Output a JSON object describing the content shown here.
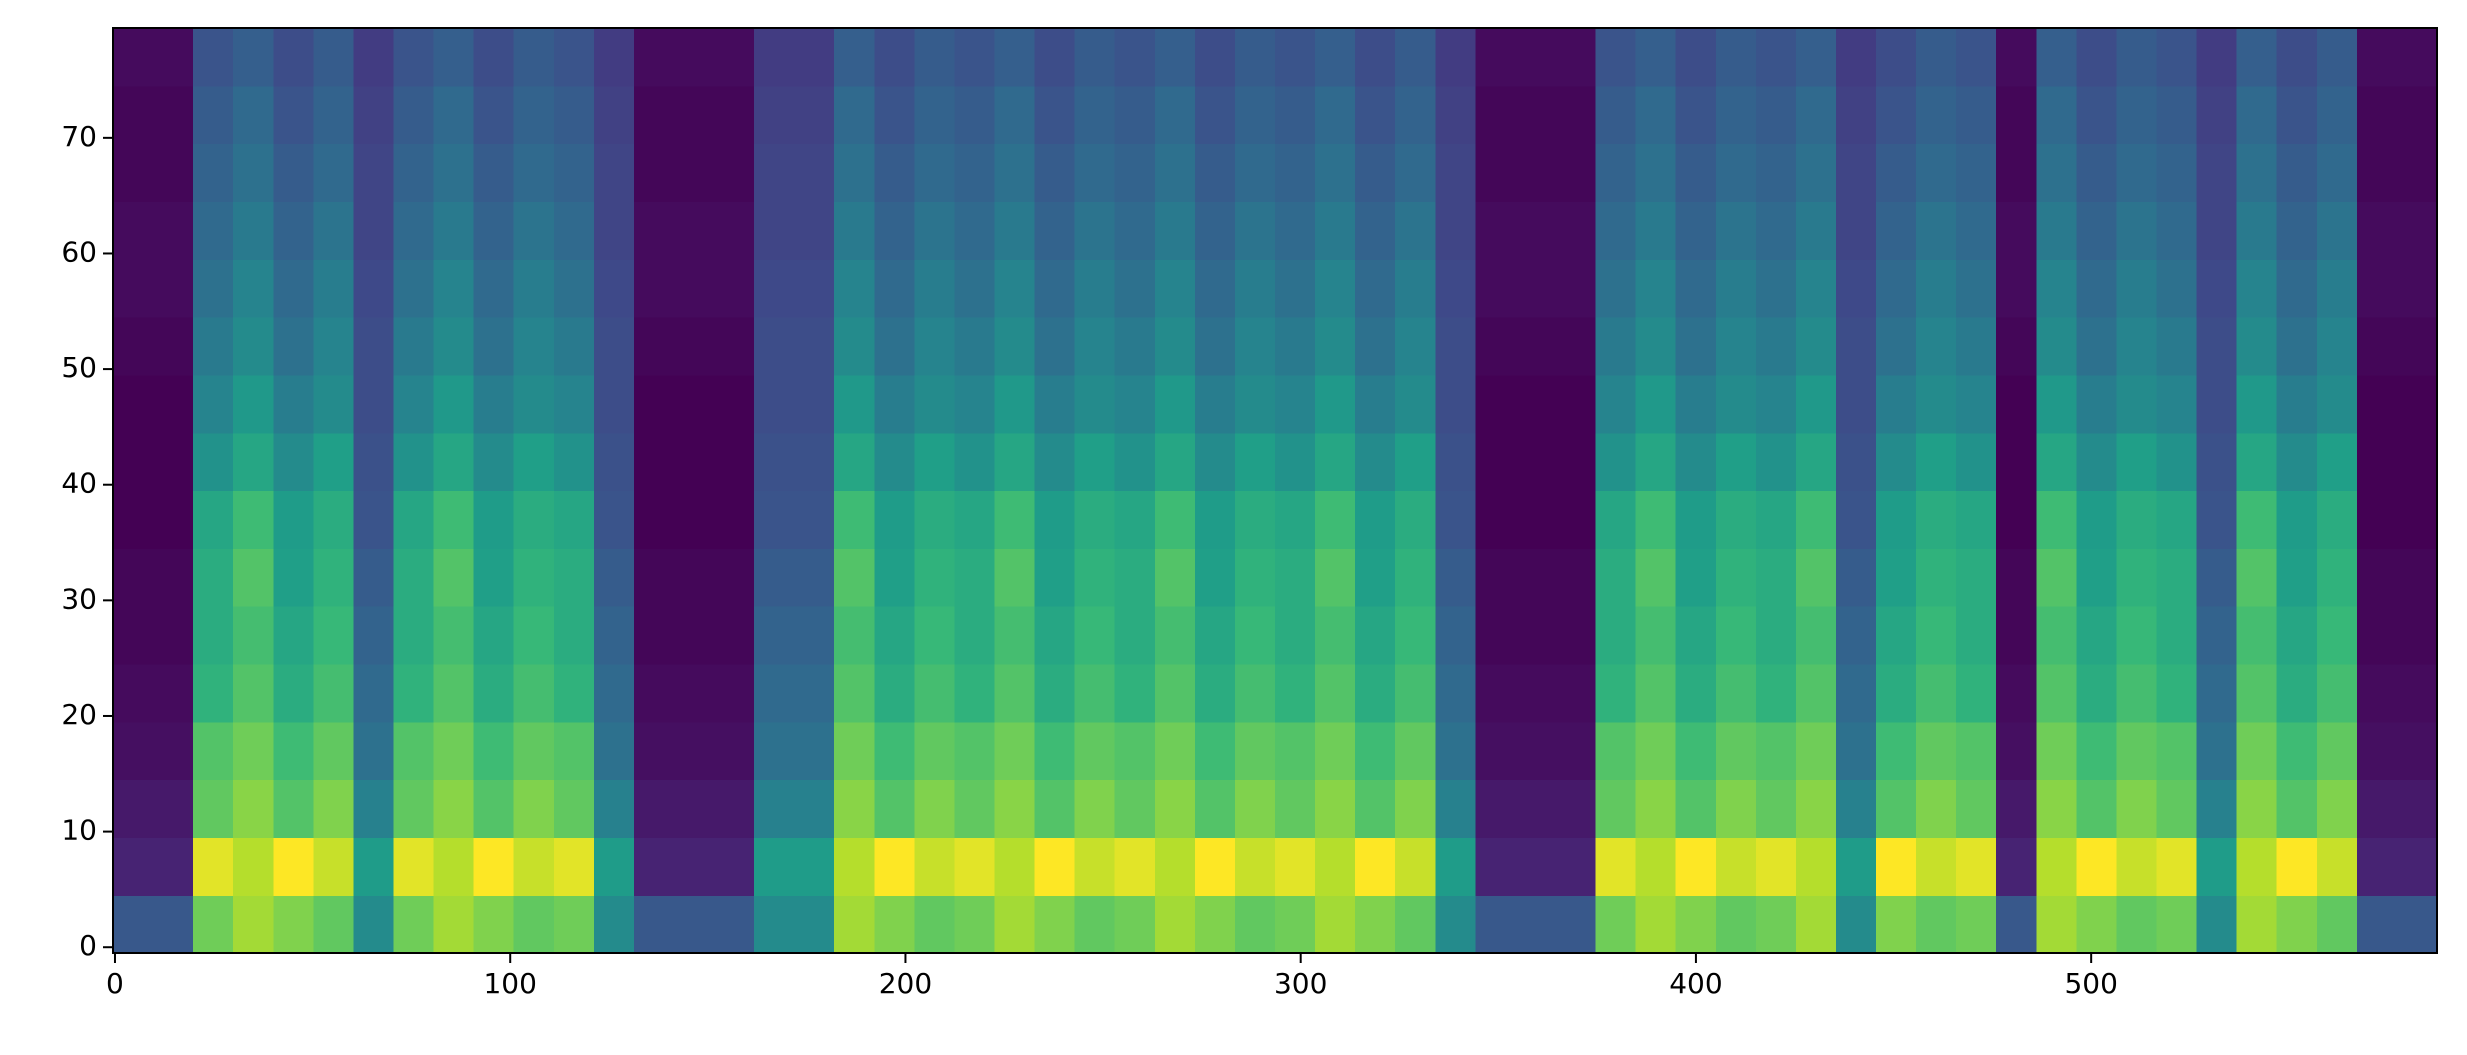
{
  "chart_data": {
    "type": "heatmap",
    "colormap": "viridis",
    "xlim": [
      -0.5,
      587.5
    ],
    "ylim": [
      -0.5,
      79.5
    ],
    "xticks": [
      0,
      100,
      200,
      300,
      400,
      500
    ],
    "yticks": [
      0,
      10,
      20,
      30,
      40,
      50,
      60,
      70
    ],
    "z": [
      [
        0.35,
        0.35,
        0.72,
        0.78,
        0.74,
        0.7,
        0.5,
        0.72,
        0.78,
        0.74,
        0.7,
        0.72,
        0.5,
        0.35,
        0.35,
        0.35,
        0.5,
        0.5,
        0.78,
        0.74,
        0.7,
        0.72,
        0.78,
        0.74,
        0.7,
        0.72,
        0.78,
        0.74,
        0.7,
        0.72,
        0.78,
        0.74,
        0.7,
        0.5,
        0.35,
        0.35,
        0.35,
        0.72,
        0.78,
        0.74,
        0.7,
        0.72,
        0.78,
        0.5,
        0.74,
        0.7,
        0.72,
        0.35,
        0.78,
        0.74,
        0.7,
        0.72,
        0.5,
        0.78,
        0.74,
        0.7,
        0.35,
        0.35
      ],
      [
        0.22,
        0.22,
        0.85,
        0.8,
        0.88,
        0.82,
        0.55,
        0.85,
        0.8,
        0.88,
        0.82,
        0.85,
        0.55,
        0.22,
        0.22,
        0.22,
        0.55,
        0.55,
        0.8,
        0.88,
        0.82,
        0.85,
        0.8,
        0.88,
        0.82,
        0.85,
        0.8,
        0.88,
        0.82,
        0.85,
        0.8,
        0.88,
        0.82,
        0.55,
        0.22,
        0.22,
        0.22,
        0.85,
        0.8,
        0.88,
        0.82,
        0.85,
        0.8,
        0.55,
        0.88,
        0.82,
        0.85,
        0.22,
        0.8,
        0.88,
        0.82,
        0.85,
        0.55,
        0.8,
        0.88,
        0.82,
        0.22,
        0.22
      ],
      [
        0.2,
        0.2,
        0.7,
        0.75,
        0.68,
        0.74,
        0.47,
        0.7,
        0.75,
        0.68,
        0.74,
        0.7,
        0.47,
        0.2,
        0.2,
        0.2,
        0.47,
        0.47,
        0.75,
        0.68,
        0.74,
        0.7,
        0.75,
        0.68,
        0.74,
        0.7,
        0.75,
        0.68,
        0.74,
        0.7,
        0.75,
        0.68,
        0.74,
        0.47,
        0.2,
        0.2,
        0.2,
        0.7,
        0.75,
        0.68,
        0.74,
        0.7,
        0.75,
        0.47,
        0.68,
        0.74,
        0.7,
        0.2,
        0.75,
        0.68,
        0.74,
        0.7,
        0.47,
        0.75,
        0.68,
        0.74,
        0.2,
        0.2
      ],
      [
        0.18,
        0.18,
        0.68,
        0.72,
        0.65,
        0.7,
        0.42,
        0.68,
        0.72,
        0.65,
        0.7,
        0.68,
        0.42,
        0.18,
        0.18,
        0.18,
        0.42,
        0.42,
        0.72,
        0.65,
        0.7,
        0.68,
        0.72,
        0.65,
        0.7,
        0.68,
        0.72,
        0.65,
        0.7,
        0.68,
        0.72,
        0.65,
        0.7,
        0.42,
        0.18,
        0.18,
        0.18,
        0.68,
        0.72,
        0.65,
        0.7,
        0.68,
        0.72,
        0.42,
        0.65,
        0.7,
        0.68,
        0.18,
        0.72,
        0.65,
        0.7,
        0.68,
        0.42,
        0.72,
        0.65,
        0.7,
        0.18,
        0.18
      ],
      [
        0.17,
        0.17,
        0.62,
        0.68,
        0.6,
        0.66,
        0.4,
        0.62,
        0.68,
        0.6,
        0.66,
        0.62,
        0.4,
        0.17,
        0.17,
        0.17,
        0.4,
        0.4,
        0.68,
        0.6,
        0.66,
        0.62,
        0.68,
        0.6,
        0.66,
        0.62,
        0.68,
        0.6,
        0.66,
        0.62,
        0.68,
        0.6,
        0.66,
        0.4,
        0.17,
        0.17,
        0.17,
        0.62,
        0.68,
        0.6,
        0.66,
        0.62,
        0.68,
        0.4,
        0.6,
        0.66,
        0.62,
        0.17,
        0.68,
        0.6,
        0.66,
        0.62,
        0.4,
        0.68,
        0.6,
        0.66,
        0.17,
        0.17
      ],
      [
        0.16,
        0.16,
        0.6,
        0.66,
        0.58,
        0.64,
        0.38,
        0.6,
        0.66,
        0.58,
        0.64,
        0.6,
        0.38,
        0.16,
        0.16,
        0.16,
        0.38,
        0.38,
        0.66,
        0.58,
        0.64,
        0.6,
        0.66,
        0.58,
        0.64,
        0.6,
        0.66,
        0.58,
        0.64,
        0.6,
        0.66,
        0.58,
        0.64,
        0.38,
        0.16,
        0.16,
        0.16,
        0.6,
        0.66,
        0.58,
        0.64,
        0.6,
        0.66,
        0.38,
        0.58,
        0.64,
        0.6,
        0.16,
        0.66,
        0.58,
        0.64,
        0.6,
        0.38,
        0.66,
        0.58,
        0.64,
        0.16,
        0.16
      ],
      [
        0.16,
        0.16,
        0.6,
        0.68,
        0.56,
        0.62,
        0.36,
        0.6,
        0.68,
        0.56,
        0.62,
        0.6,
        0.36,
        0.16,
        0.16,
        0.16,
        0.36,
        0.36,
        0.68,
        0.56,
        0.62,
        0.6,
        0.68,
        0.56,
        0.62,
        0.6,
        0.68,
        0.56,
        0.62,
        0.6,
        0.68,
        0.56,
        0.62,
        0.36,
        0.16,
        0.16,
        0.16,
        0.6,
        0.68,
        0.56,
        0.62,
        0.6,
        0.68,
        0.36,
        0.56,
        0.62,
        0.6,
        0.16,
        0.68,
        0.56,
        0.62,
        0.6,
        0.36,
        0.68,
        0.56,
        0.62,
        0.16,
        0.16
      ],
      [
        0.15,
        0.15,
        0.58,
        0.65,
        0.55,
        0.6,
        0.34,
        0.58,
        0.65,
        0.55,
        0.6,
        0.58,
        0.34,
        0.15,
        0.15,
        0.15,
        0.34,
        0.34,
        0.65,
        0.55,
        0.6,
        0.58,
        0.65,
        0.55,
        0.6,
        0.58,
        0.65,
        0.55,
        0.6,
        0.58,
        0.65,
        0.55,
        0.6,
        0.34,
        0.15,
        0.15,
        0.15,
        0.58,
        0.65,
        0.55,
        0.6,
        0.58,
        0.65,
        0.34,
        0.55,
        0.6,
        0.58,
        0.15,
        0.65,
        0.55,
        0.6,
        0.58,
        0.34,
        0.65,
        0.55,
        0.6,
        0.15,
        0.15
      ],
      [
        0.15,
        0.15,
        0.52,
        0.58,
        0.5,
        0.56,
        0.33,
        0.52,
        0.58,
        0.5,
        0.56,
        0.52,
        0.33,
        0.15,
        0.15,
        0.15,
        0.33,
        0.33,
        0.58,
        0.5,
        0.56,
        0.52,
        0.58,
        0.5,
        0.56,
        0.52,
        0.58,
        0.5,
        0.56,
        0.52,
        0.58,
        0.5,
        0.56,
        0.33,
        0.15,
        0.15,
        0.15,
        0.52,
        0.58,
        0.5,
        0.56,
        0.52,
        0.58,
        0.33,
        0.5,
        0.56,
        0.52,
        0.15,
        0.58,
        0.5,
        0.56,
        0.52,
        0.33,
        0.58,
        0.5,
        0.56,
        0.15,
        0.15
      ],
      [
        0.15,
        0.15,
        0.48,
        0.54,
        0.46,
        0.5,
        0.32,
        0.48,
        0.54,
        0.46,
        0.5,
        0.48,
        0.32,
        0.15,
        0.15,
        0.15,
        0.32,
        0.32,
        0.54,
        0.46,
        0.5,
        0.48,
        0.54,
        0.46,
        0.5,
        0.48,
        0.54,
        0.46,
        0.5,
        0.48,
        0.54,
        0.46,
        0.5,
        0.32,
        0.15,
        0.15,
        0.15,
        0.48,
        0.54,
        0.46,
        0.5,
        0.48,
        0.54,
        0.32,
        0.46,
        0.5,
        0.48,
        0.15,
        0.54,
        0.46,
        0.5,
        0.48,
        0.32,
        0.54,
        0.46,
        0.5,
        0.15,
        0.15
      ],
      [
        0.16,
        0.16,
        0.45,
        0.5,
        0.42,
        0.48,
        0.32,
        0.45,
        0.5,
        0.42,
        0.48,
        0.45,
        0.32,
        0.16,
        0.16,
        0.16,
        0.32,
        0.32,
        0.5,
        0.42,
        0.48,
        0.45,
        0.5,
        0.42,
        0.48,
        0.45,
        0.5,
        0.42,
        0.48,
        0.45,
        0.5,
        0.42,
        0.48,
        0.32,
        0.16,
        0.16,
        0.16,
        0.45,
        0.5,
        0.42,
        0.48,
        0.45,
        0.5,
        0.32,
        0.42,
        0.48,
        0.45,
        0.16,
        0.5,
        0.42,
        0.48,
        0.45,
        0.32,
        0.5,
        0.42,
        0.48,
        0.16,
        0.16
      ],
      [
        0.17,
        0.17,
        0.42,
        0.48,
        0.4,
        0.46,
        0.31,
        0.42,
        0.48,
        0.4,
        0.46,
        0.42,
        0.31,
        0.17,
        0.17,
        0.17,
        0.31,
        0.31,
        0.48,
        0.4,
        0.46,
        0.42,
        0.48,
        0.4,
        0.46,
        0.42,
        0.48,
        0.4,
        0.46,
        0.42,
        0.48,
        0.4,
        0.46,
        0.31,
        0.17,
        0.17,
        0.17,
        0.42,
        0.48,
        0.4,
        0.46,
        0.42,
        0.48,
        0.31,
        0.4,
        0.46,
        0.42,
        0.17,
        0.48,
        0.4,
        0.46,
        0.42,
        0.31,
        0.48,
        0.4,
        0.46,
        0.17,
        0.17
      ],
      [
        0.17,
        0.17,
        0.4,
        0.45,
        0.38,
        0.43,
        0.3,
        0.4,
        0.45,
        0.38,
        0.43,
        0.4,
        0.3,
        0.17,
        0.17,
        0.17,
        0.3,
        0.3,
        0.45,
        0.38,
        0.43,
        0.4,
        0.45,
        0.38,
        0.43,
        0.4,
        0.45,
        0.38,
        0.43,
        0.4,
        0.45,
        0.38,
        0.43,
        0.3,
        0.17,
        0.17,
        0.17,
        0.4,
        0.45,
        0.38,
        0.43,
        0.4,
        0.45,
        0.3,
        0.38,
        0.43,
        0.4,
        0.17,
        0.45,
        0.38,
        0.43,
        0.4,
        0.3,
        0.45,
        0.38,
        0.43,
        0.17,
        0.17
      ],
      [
        0.16,
        0.16,
        0.38,
        0.42,
        0.36,
        0.4,
        0.3,
        0.38,
        0.42,
        0.36,
        0.4,
        0.38,
        0.3,
        0.16,
        0.16,
        0.16,
        0.3,
        0.3,
        0.42,
        0.36,
        0.4,
        0.38,
        0.42,
        0.36,
        0.4,
        0.38,
        0.42,
        0.36,
        0.4,
        0.38,
        0.42,
        0.36,
        0.4,
        0.3,
        0.16,
        0.16,
        0.16,
        0.38,
        0.42,
        0.36,
        0.4,
        0.38,
        0.42,
        0.3,
        0.36,
        0.4,
        0.38,
        0.16,
        0.42,
        0.36,
        0.4,
        0.38,
        0.3,
        0.42,
        0.36,
        0.4,
        0.16,
        0.16
      ],
      [
        0.16,
        0.16,
        0.36,
        0.4,
        0.34,
        0.38,
        0.29,
        0.36,
        0.4,
        0.34,
        0.38,
        0.36,
        0.29,
        0.16,
        0.16,
        0.16,
        0.29,
        0.29,
        0.4,
        0.34,
        0.38,
        0.36,
        0.4,
        0.34,
        0.38,
        0.36,
        0.4,
        0.34,
        0.38,
        0.36,
        0.4,
        0.34,
        0.38,
        0.29,
        0.16,
        0.16,
        0.16,
        0.36,
        0.4,
        0.34,
        0.38,
        0.36,
        0.4,
        0.29,
        0.34,
        0.38,
        0.36,
        0.16,
        0.4,
        0.34,
        0.38,
        0.36,
        0.29,
        0.4,
        0.34,
        0.38,
        0.16,
        0.16
      ],
      [
        0.17,
        0.17,
        0.34,
        0.37,
        0.32,
        0.36,
        0.28,
        0.34,
        0.37,
        0.32,
        0.36,
        0.34,
        0.28,
        0.17,
        0.17,
        0.17,
        0.28,
        0.28,
        0.37,
        0.32,
        0.36,
        0.34,
        0.37,
        0.32,
        0.36,
        0.34,
        0.37,
        0.32,
        0.36,
        0.34,
        0.37,
        0.32,
        0.36,
        0.28,
        0.17,
        0.17,
        0.17,
        0.34,
        0.37,
        0.32,
        0.36,
        0.34,
        0.37,
        0.28,
        0.32,
        0.36,
        0.34,
        0.17,
        0.37,
        0.32,
        0.36,
        0.34,
        0.28,
        0.37,
        0.32,
        0.36,
        0.17,
        0.17
      ]
    ]
  }
}
